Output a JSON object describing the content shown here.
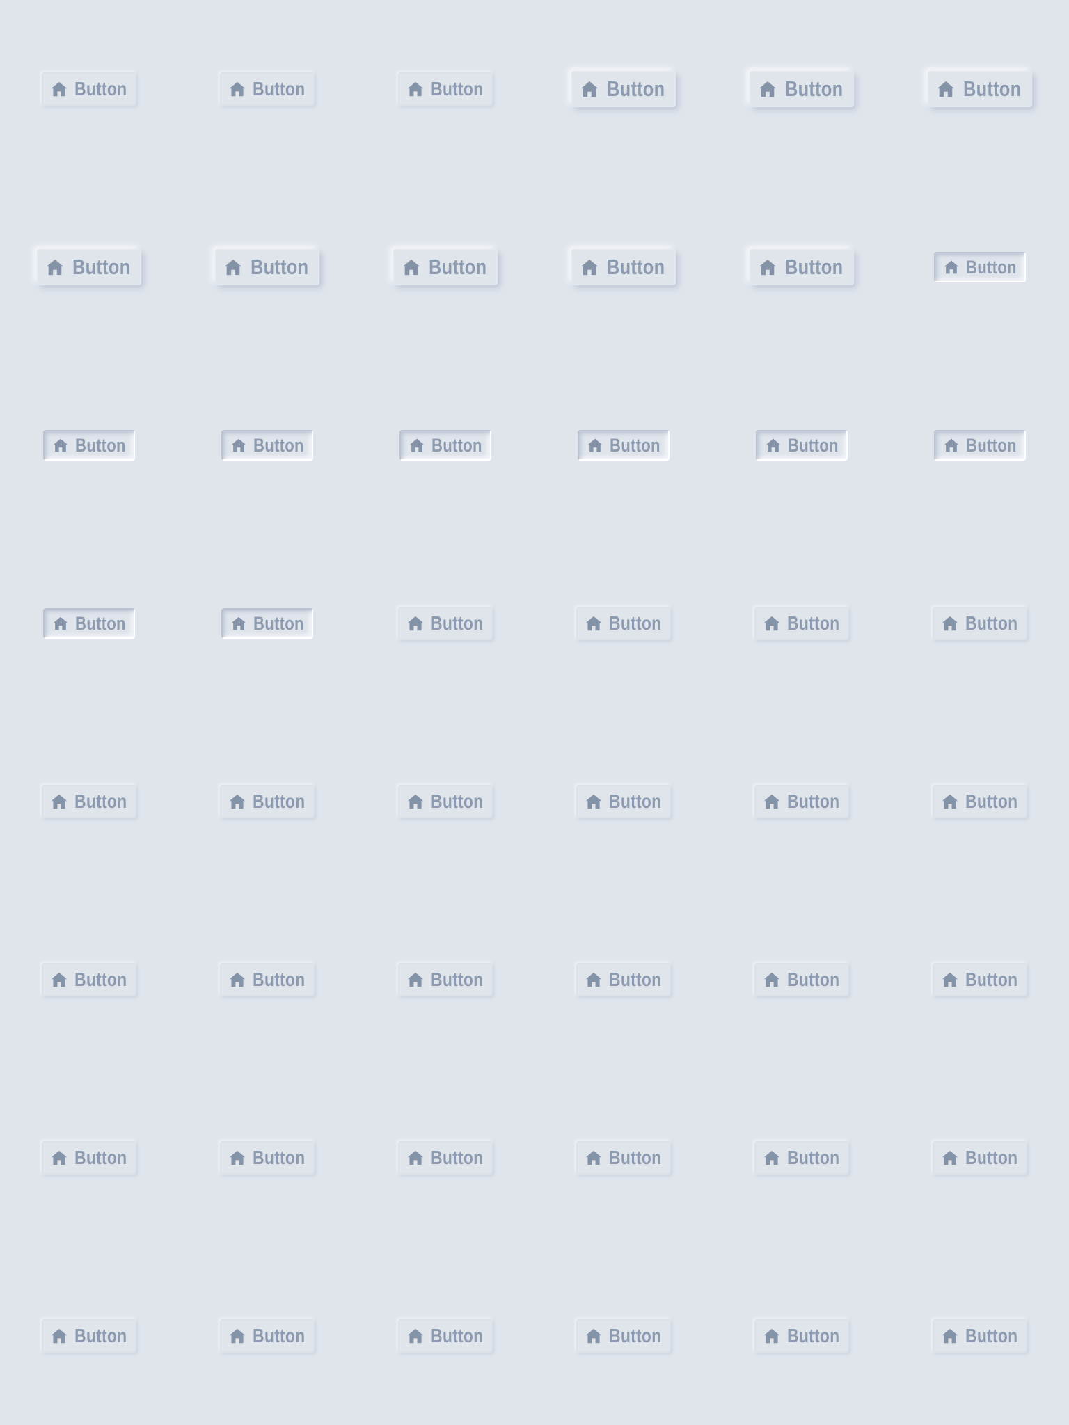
{
  "theme": {
    "background": "#e0e5ec",
    "text_color": "#8d9bb0",
    "icon_color": "#8493a8"
  },
  "button": {
    "label": "Button",
    "icon": "home-icon"
  },
  "grid": {
    "rows": 8,
    "columns": 6,
    "row_styles": [
      [
        "flat",
        "flat",
        "flat",
        "raised",
        "raised",
        "raised"
      ],
      [
        "raised",
        "raised",
        "raised",
        "raised",
        "raised",
        "pressed"
      ],
      [
        "pressed",
        "pressed",
        "pressed",
        "pressed",
        "pressed",
        "pressed"
      ],
      [
        "pressed",
        "pressed",
        "flat",
        "flat",
        "flat",
        "flat"
      ],
      [
        "flat",
        "flat",
        "flat",
        "flat",
        "flat",
        "flat"
      ],
      [
        "flat",
        "flat",
        "flat",
        "flat",
        "flat",
        "flat"
      ],
      [
        "flat",
        "flat",
        "flat",
        "flat",
        "flat",
        "flat"
      ],
      [
        "flat",
        "flat",
        "flat",
        "flat",
        "flat",
        "flat"
      ]
    ]
  }
}
